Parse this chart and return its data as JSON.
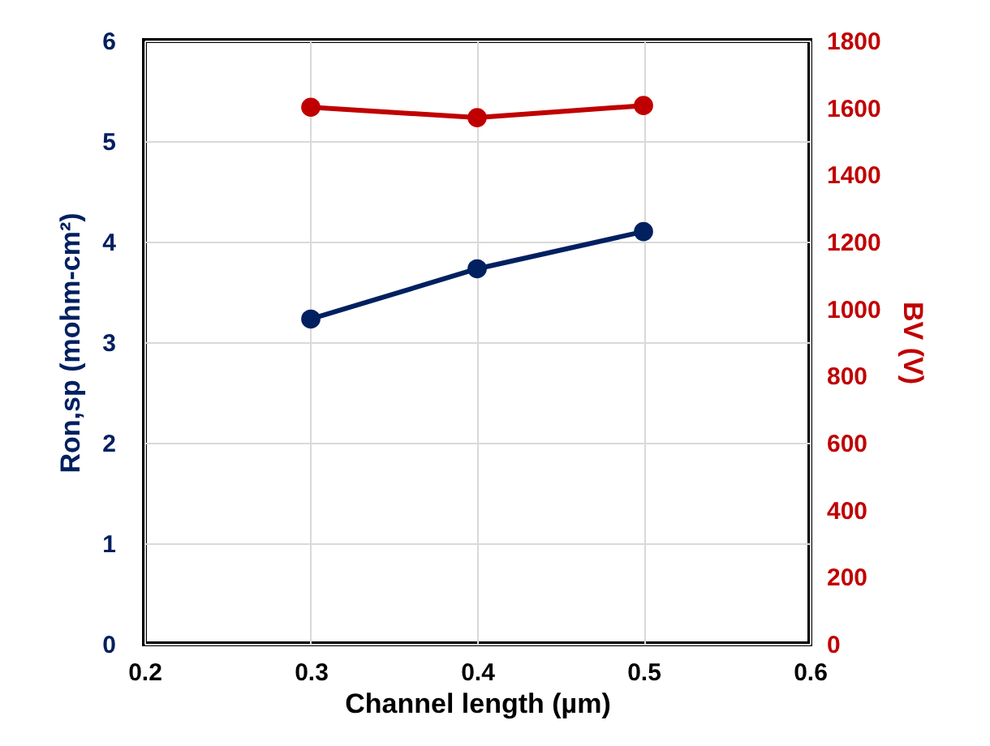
{
  "chart_data": {
    "type": "line",
    "xlabel": "Channel length (µm)",
    "ylabel": "Ron,sp (mohm-cm²)",
    "y2label": "BV (V)",
    "x": [
      0.3,
      0.4,
      0.5
    ],
    "series": [
      {
        "color": "#002060",
        "values": [
          3.23,
          3.73,
          4.1
        ]
      },
      {
        "color": "#c00000",
        "values": [
          1601,
          1570,
          1606
        ],
        "axis": "y2"
      }
    ],
    "xlim": [
      0.2,
      0.6
    ],
    "xticks": [
      0.2,
      0.3,
      0.4,
      0.5,
      0.6
    ],
    "ylim": [
      0,
      6
    ],
    "yticks": [
      0,
      1,
      2,
      3,
      4,
      5,
      6
    ],
    "y2lim": [
      0,
      1800
    ],
    "y2ticks": [
      0,
      200,
      400,
      600,
      800,
      1000,
      1200,
      1400,
      1600,
      1800
    ],
    "grid": true,
    "marker": "circle",
    "line_style": "solid"
  }
}
